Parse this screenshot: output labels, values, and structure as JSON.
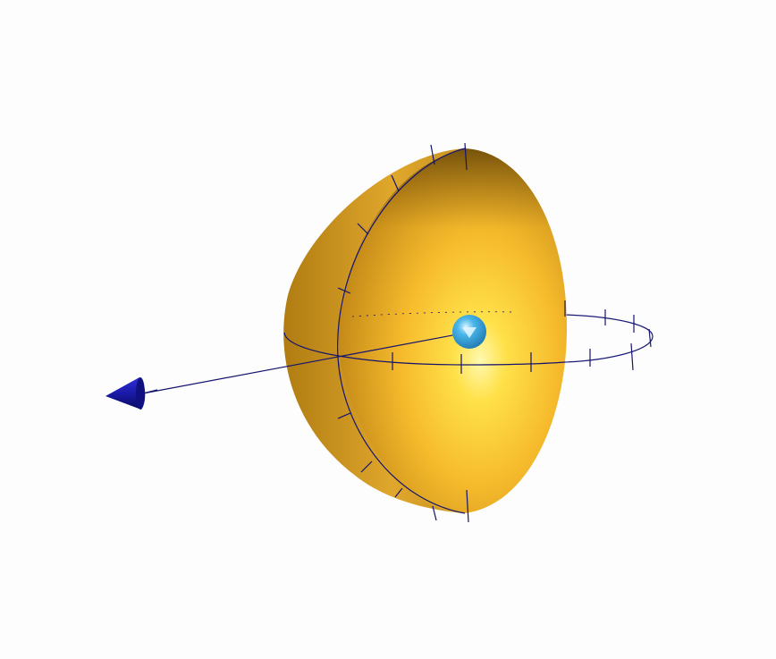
{
  "scene": {
    "type": "3d-render",
    "background_color": "#fdfdfd",
    "objects": [
      {
        "name": "hemisphere",
        "color": "#f4b52a",
        "highlight_color": "#fff8a0",
        "shadow_color": "#9a6e12"
      },
      {
        "name": "small-sphere",
        "color": "#3aa6dc",
        "highlight_color": "#c6ecff"
      },
      {
        "name": "arrow-cone",
        "color": "#1a1aa0"
      },
      {
        "name": "circle-lines",
        "color": "#14146e"
      }
    ]
  }
}
